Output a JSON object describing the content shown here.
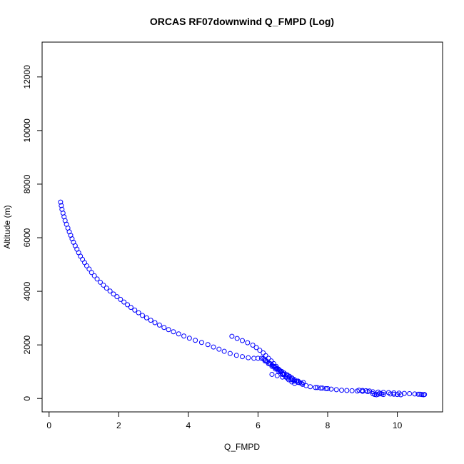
{
  "chart_data": {
    "type": "scatter",
    "title": "ORCAS RF07downwind Q_FMPD (Log)",
    "xlabel": "Q_FMPD",
    "ylabel": "Altitude (m)",
    "xlim": [
      -0.2,
      11.3
    ],
    "ylim": [
      -500,
      13300
    ],
    "x_ticks": [
      0,
      2,
      4,
      6,
      8,
      10
    ],
    "y_ticks": [
      0,
      2000,
      4000,
      6000,
      8000,
      10000,
      12000
    ],
    "marker_color": "#0000ff",
    "marker": "open-circle",
    "grid": false,
    "legend": "none",
    "series": [
      {
        "x": [
          0.33,
          0.35,
          0.37,
          0.4,
          0.43,
          0.46,
          0.5,
          0.54,
          0.58,
          0.62,
          0.66,
          0.7,
          0.75,
          0.8,
          0.85,
          0.9,
          0.96,
          1.02,
          1.08,
          1.15,
          1.22,
          1.3,
          1.38,
          1.47,
          1.56,
          1.65,
          1.75,
          1.85,
          1.95,
          2.05,
          2.15,
          2.25,
          2.35,
          2.46,
          2.57,
          2.68,
          2.8,
          2.92,
          3.04,
          3.17,
          3.3,
          3.43,
          3.57,
          3.72,
          3.87,
          4.03,
          4.2,
          4.38,
          4.56,
          4.72,
          4.88,
          5.03,
          5.2,
          5.38,
          5.55,
          5.72,
          5.88,
          6.0,
          6.1,
          6.15,
          6.18,
          6.22,
          6.27,
          6.33,
          6.4,
          6.47,
          6.54,
          6.61,
          6.68,
          6.75,
          6.83,
          6.9,
          6.97,
          7.04,
          7.12,
          7.2,
          7.28,
          7.38,
          7.5,
          7.65,
          7.8,
          7.95,
          8.1,
          8.25,
          8.4,
          8.55,
          8.7,
          8.85,
          9.0,
          9.15,
          9.3,
          9.45,
          9.6,
          9.75,
          9.9,
          10.05,
          10.2,
          10.35,
          10.5,
          10.65,
          10.78,
          5.25,
          5.4,
          5.55,
          5.7,
          5.85,
          5.95,
          6.05,
          6.15,
          6.22,
          6.3,
          6.38,
          6.45,
          6.52,
          6.58,
          6.65,
          6.72,
          6.8,
          6.88,
          6.97,
          7.05,
          6.35,
          6.45,
          6.55,
          6.65,
          6.75,
          6.85,
          6.95,
          7.05,
          7.15,
          7.25,
          6.4,
          6.55,
          6.7,
          6.85,
          7.0,
          7.15,
          7.3,
          6.5,
          6.62,
          6.74,
          6.86,
          6.98,
          7.1,
          6.2,
          6.3,
          6.4,
          6.5,
          6.6,
          6.7,
          6.8,
          9.3,
          9.35,
          9.4,
          9.45,
          9.5,
          9.55,
          9.6,
          9.8,
          9.9,
          10.0,
          10.1,
          10.6,
          10.7,
          10.75,
          8.9,
          9.0,
          9.1,
          9.2,
          7.7,
          7.85,
          8.0
        ],
        "y": [
          7330,
          7200,
          7060,
          6920,
          6780,
          6640,
          6500,
          6360,
          6220,
          6090,
          5960,
          5830,
          5700,
          5570,
          5440,
          5310,
          5190,
          5070,
          4950,
          4830,
          4700,
          4580,
          4460,
          4340,
          4230,
          4120,
          4010,
          3900,
          3800,
          3700,
          3600,
          3500,
          3400,
          3300,
          3200,
          3100,
          3010,
          2920,
          2830,
          2740,
          2650,
          2570,
          2490,
          2410,
          2330,
          2250,
          2170,
          2090,
          2010,
          1920,
          1840,
          1760,
          1680,
          1610,
          1560,
          1520,
          1500,
          1500,
          1500,
          1490,
          1460,
          1420,
          1370,
          1310,
          1250,
          1190,
          1130,
          1070,
          1010,
          950,
          890,
          830,
          770,
          710,
          650,
          590,
          530,
          480,
          440,
          410,
          390,
          370,
          350,
          330,
          310,
          300,
          290,
          280,
          270,
          260,
          250,
          240,
          230,
          220,
          210,
          200,
          190,
          180,
          170,
          160,
          150,
          2320,
          2240,
          2160,
          2080,
          1990,
          1900,
          1800,
          1700,
          1600,
          1500,
          1400,
          1300,
          1200,
          1100,
          1000,
          900,
          800,
          700,
          620,
          560,
          1300,
          1200,
          1100,
          1000,
          900,
          800,
          700,
          650,
          600,
          560,
          900,
          850,
          800,
          750,
          700,
          650,
          600,
          1150,
          1050,
          950,
          850,
          750,
          650,
          1400,
          1300,
          1200,
          1100,
          1000,
          900,
          800,
          180,
          150,
          140,
          160,
          190,
          170,
          150,
          170,
          160,
          150,
          140,
          160,
          150,
          140,
          310,
          300,
          290,
          280,
          410,
          390,
          370
        ]
      }
    ]
  }
}
